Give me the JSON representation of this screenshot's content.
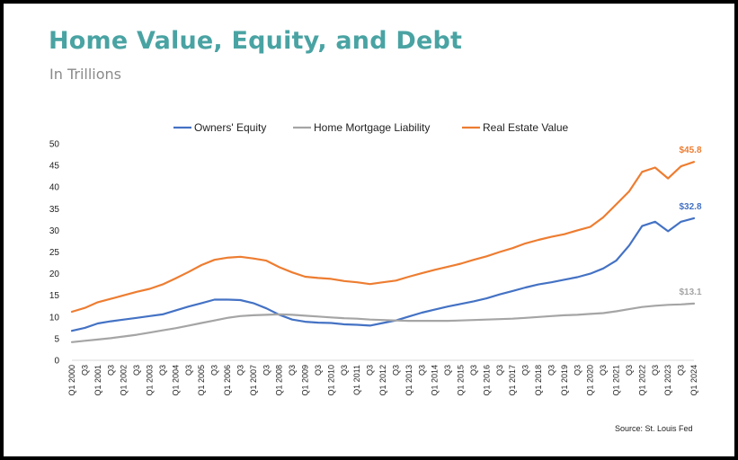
{
  "title": "Home Value, Equity, and Debt",
  "subtitle": "In Trillions",
  "source": "Source: St. Louis Fed",
  "chart_data": {
    "type": "line",
    "legend_position": "top",
    "grid": false,
    "ylim": [
      0,
      50
    ],
    "yticks": [
      0,
      5,
      10,
      15,
      20,
      25,
      30,
      35,
      40,
      45,
      50
    ],
    "x_tick_labels": [
      "Q1 2000",
      "Q3",
      "Q1 2001",
      "Q3",
      "Q1 2002",
      "Q3",
      "Q1 2003",
      "Q3",
      "Q1 2004",
      "Q3",
      "Q1 2005",
      "Q3",
      "Q1 2006",
      "Q3",
      "Q1 2007",
      "Q3",
      "Q1 2008",
      "Q3",
      "Q1 2009",
      "Q3",
      "Q1 2010",
      "Q3",
      "Q1 2011",
      "Q3",
      "Q1 2012",
      "Q3",
      "Q1 2013",
      "Q3",
      "Q1 2014",
      "Q3",
      "Q1 2015",
      "Q3",
      "Q1 2016",
      "Q3",
      "Q1 2017",
      "Q3",
      "Q1 2018",
      "Q3",
      "Q1 2019",
      "Q3",
      "Q1 2020",
      "Q3",
      "Q1 2021",
      "Q3",
      "Q1 2022",
      "Q3",
      "Q1 2023",
      "Q3",
      "Q1 2024"
    ],
    "x": [
      "Q1 2000",
      "Q3 2000",
      "Q1 2001",
      "Q3 2001",
      "Q1 2002",
      "Q3 2002",
      "Q1 2003",
      "Q3 2003",
      "Q1 2004",
      "Q3 2004",
      "Q1 2005",
      "Q3 2005",
      "Q1 2006",
      "Q3 2006",
      "Q1 2007",
      "Q3 2007",
      "Q1 2008",
      "Q3 2008",
      "Q1 2009",
      "Q3 2009",
      "Q1 2010",
      "Q3 2010",
      "Q1 2011",
      "Q3 2011",
      "Q1 2012",
      "Q3 2012",
      "Q1 2013",
      "Q3 2013",
      "Q1 2014",
      "Q3 2014",
      "Q1 2015",
      "Q3 2015",
      "Q1 2016",
      "Q3 2016",
      "Q1 2017",
      "Q3 2017",
      "Q1 2018",
      "Q3 2018",
      "Q1 2019",
      "Q3 2019",
      "Q1 2020",
      "Q3 2020",
      "Q1 2021",
      "Q3 2021",
      "Q1 2022",
      "Q3 2022",
      "Q1 2023",
      "Q3 2023",
      "Q1 2024"
    ],
    "series": [
      {
        "name": "Owners' Equity",
        "color": "#4472c4",
        "end_label": "$32.8",
        "values": [
          6.8,
          7.5,
          8.5,
          9.0,
          9.4,
          9.8,
          10.2,
          10.6,
          11.5,
          12.4,
          13.2,
          14.0,
          14.0,
          13.9,
          13.2,
          12.0,
          10.5,
          9.4,
          8.9,
          8.7,
          8.6,
          8.3,
          8.2,
          8.0,
          8.6,
          9.2,
          10.1,
          11.0,
          11.7,
          12.4,
          13.0,
          13.6,
          14.3,
          15.2,
          16.0,
          16.8,
          17.5,
          18.0,
          18.6,
          19.2,
          20.0,
          21.2,
          23.0,
          26.5,
          31.0,
          32.0,
          29.8,
          32.0,
          32.8
        ]
      },
      {
        "name": "Home Mortgage Liability",
        "color": "#a5a5a5",
        "end_label": "$13.1",
        "values": [
          4.2,
          4.5,
          4.8,
          5.1,
          5.5,
          5.9,
          6.4,
          6.9,
          7.4,
          8.0,
          8.6,
          9.2,
          9.8,
          10.2,
          10.4,
          10.5,
          10.6,
          10.5,
          10.3,
          10.1,
          9.9,
          9.7,
          9.6,
          9.4,
          9.3,
          9.2,
          9.1,
          9.1,
          9.1,
          9.1,
          9.2,
          9.3,
          9.4,
          9.5,
          9.6,
          9.8,
          10.0,
          10.2,
          10.4,
          10.5,
          10.7,
          10.9,
          11.3,
          11.8,
          12.3,
          12.6,
          12.8,
          12.9,
          13.1
        ]
      },
      {
        "name": "Real Estate Value",
        "color": "#ed7d31",
        "end_label": "$45.8",
        "values": [
          11.2,
          12.1,
          13.4,
          14.2,
          15.0,
          15.8,
          16.5,
          17.5,
          18.9,
          20.4,
          22.0,
          23.2,
          23.7,
          23.9,
          23.5,
          23.0,
          21.5,
          20.3,
          19.3,
          19.0,
          18.8,
          18.3,
          18.0,
          17.6,
          18.0,
          18.4,
          19.3,
          20.1,
          20.9,
          21.6,
          22.3,
          23.2,
          24.0,
          25.0,
          25.9,
          27.0,
          27.8,
          28.5,
          29.1,
          30.0,
          30.8,
          33.0,
          36.0,
          39.0,
          43.5,
          44.5,
          42.0,
          44.8,
          45.8
        ]
      }
    ]
  }
}
